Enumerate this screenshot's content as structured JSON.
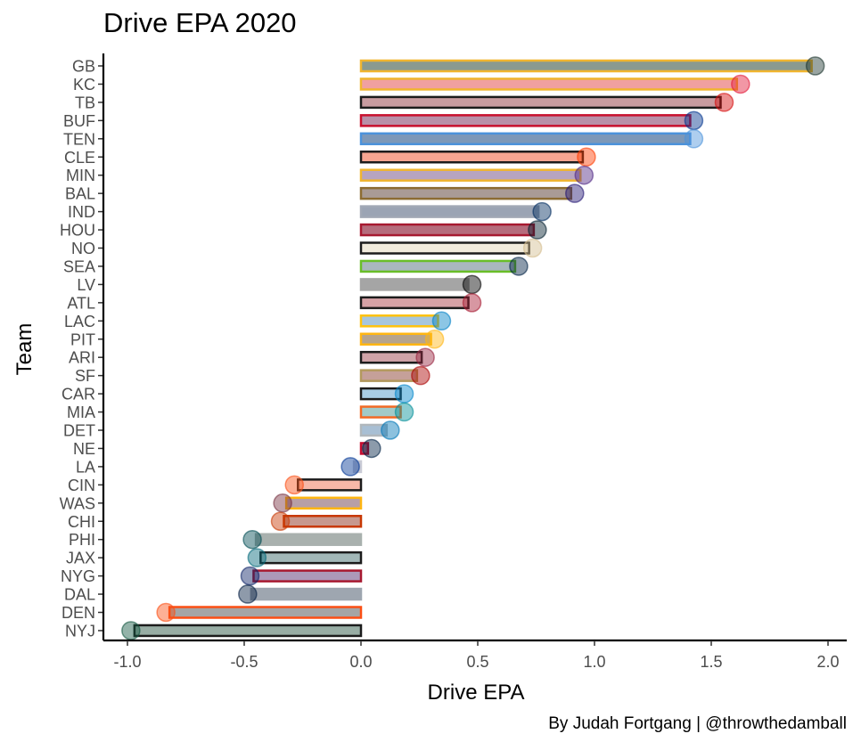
{
  "chart_data": {
    "type": "bar",
    "orientation": "horizontal",
    "title": "Drive EPA 2020",
    "xlabel": "Drive EPA",
    "ylabel": "Team",
    "xlim": [
      -1.1,
      2.1
    ],
    "xticks": [
      "-1.0",
      "-0.5",
      "0.0",
      "0.5",
      "1.0",
      "1.5",
      "2.0"
    ],
    "xtick_values": [
      -1.0,
      -0.5,
      0.0,
      0.5,
      1.0,
      1.5,
      2.0
    ],
    "grid": false,
    "categories": [
      "GB",
      "KC",
      "TB",
      "BUF",
      "TEN",
      "CLE",
      "MIN",
      "BAL",
      "IND",
      "HOU",
      "NO",
      "SEA",
      "LV",
      "ATL",
      "LAC",
      "PIT",
      "ARI",
      "SF",
      "CAR",
      "MIA",
      "DET",
      "NE",
      "LA",
      "CIN",
      "WAS",
      "CHI",
      "PHI",
      "JAX",
      "NYG",
      "DAL",
      "DEN",
      "NYJ"
    ],
    "values": [
      1.93,
      1.61,
      1.54,
      1.41,
      1.41,
      0.95,
      0.94,
      0.9,
      0.76,
      0.74,
      0.72,
      0.66,
      0.46,
      0.46,
      0.33,
      0.3,
      0.26,
      0.24,
      0.17,
      0.17,
      0.11,
      0.03,
      -0.03,
      -0.27,
      -0.32,
      -0.33,
      -0.45,
      -0.43,
      -0.46,
      -0.47,
      -0.82,
      -0.97
    ],
    "fill_colors": [
      "#8a9a8f",
      "#f0a0a0",
      "#c89ba0",
      "#b890a8",
      "#7d98b8",
      "#f7a591",
      "#b7a4bf",
      "#a99b95",
      "#9ba4b4",
      "#b56c7c",
      "#f1ebdc",
      "#a9b7bd",
      "#a5a5a5",
      "#d6a2a6",
      "#a7c6dd",
      "#b6a48d",
      "#d0a3a8",
      "#c5a099",
      "#a9cde5",
      "#a2cac8",
      "#a8bfd4",
      "#b06a80",
      "#c9cbd6",
      "#f7b8a8",
      "#b79fa6",
      "#c7988e",
      "#a9b1ae",
      "#a2b8b8",
      "#ac99b9",
      "#9ea6b0",
      "#a5a5a5",
      "#98ada4"
    ],
    "border_colors": [
      "#f0b52f",
      "#f0b52f",
      "#1c1c1c",
      "#c8102e",
      "#4b92db",
      "#1c1c1c",
      "#f0b52f",
      "#8c6c32",
      "#a1a8b5",
      "#a71930",
      "#1c1c1c",
      "#69be28",
      "#a5a5a5",
      "#1c1c1c",
      "#ffc20e",
      "#ffb612",
      "#1c1c1c",
      "#b3995d",
      "#1c1c1c",
      "#f26a24",
      "#b0b7bc",
      "#c60c30",
      "#c9cbd6",
      "#1c1c1c",
      "#ffb612",
      "#c83803",
      "#a9b1ae",
      "#1c1c1c",
      "#a71930",
      "#9ea6b0",
      "#fb4f14",
      "#1c1c1c"
    ],
    "logo_colors": [
      "#203731",
      "#e31837",
      "#d50a0a",
      "#00338d",
      "#4b92db",
      "#ff3c00",
      "#4f2683",
      "#241773",
      "#002c5f",
      "#03202f",
      "#d3bc8d",
      "#002244",
      "#000000",
      "#a71930",
      "#0080c6",
      "#ffb612",
      "#97233f",
      "#aa0000",
      "#0085ca",
      "#008e97",
      "#0076b6",
      "#002244",
      "#003594",
      "#fb4f14",
      "#773141",
      "#c83803",
      "#004c54",
      "#006778",
      "#0b2265",
      "#041e42",
      "#fb4f14",
      "#125740"
    ],
    "caption": "By Judah Fortgang | @throwthedamball"
  }
}
